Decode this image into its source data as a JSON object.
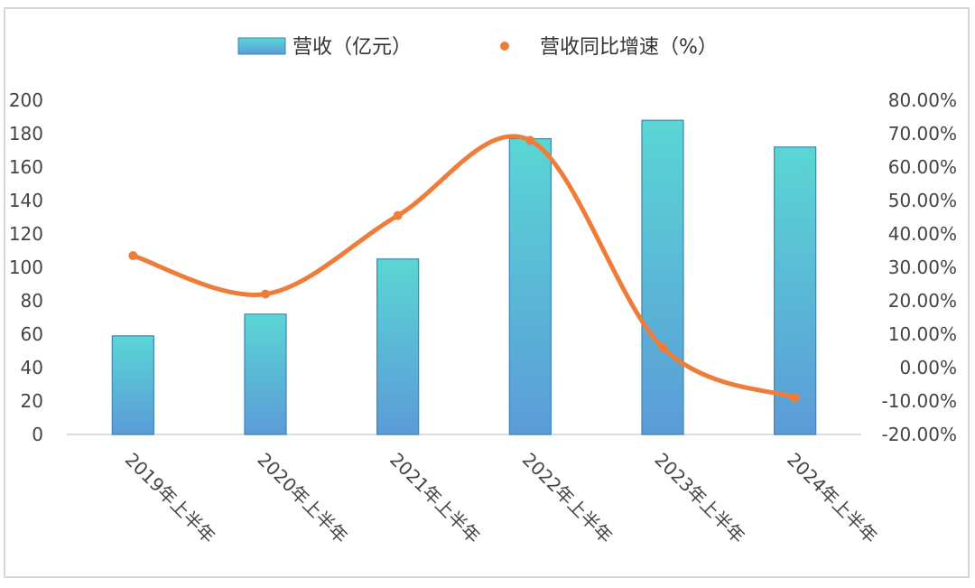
{
  "chart_data": {
    "type": "bar+line",
    "categories": [
      "2019年上半年",
      "2020年上半年",
      "2021年上半年",
      "2022年上半年",
      "2023年上半年",
      "2024年上半年"
    ],
    "series": [
      {
        "name": "营收（亿元）",
        "type": "bar",
        "axis": "left",
        "values": [
          59,
          72,
          105,
          177,
          188,
          172
        ]
      },
      {
        "name": "营收同比增速（%）",
        "type": "line",
        "axis": "right",
        "smooth": true,
        "values": [
          33.5,
          22.0,
          45.5,
          68.0,
          6.0,
          -9.0
        ]
      }
    ],
    "y_left": {
      "min": 0,
      "max": 200,
      "ticks": [
        "0",
        "20",
        "40",
        "60",
        "80",
        "100",
        "120",
        "140",
        "160",
        "180",
        "200"
      ]
    },
    "y_right": {
      "min": -20,
      "max": 80,
      "ticks": [
        "-20.00%",
        "-10.00%",
        "0.00%",
        "10.00%",
        "20.00%",
        "30.00%",
        "40.00%",
        "50.00%",
        "60.00%",
        "70.00%",
        "80.00%"
      ]
    },
    "legend_position": "top",
    "grid": false,
    "colors": {
      "bar_top": "#5ad6d4",
      "bar_bottom": "#5b9bd8",
      "bar_stroke": "#3a86b8",
      "line": "#ee7d3a",
      "line_legend": "#e63b3b"
    }
  }
}
